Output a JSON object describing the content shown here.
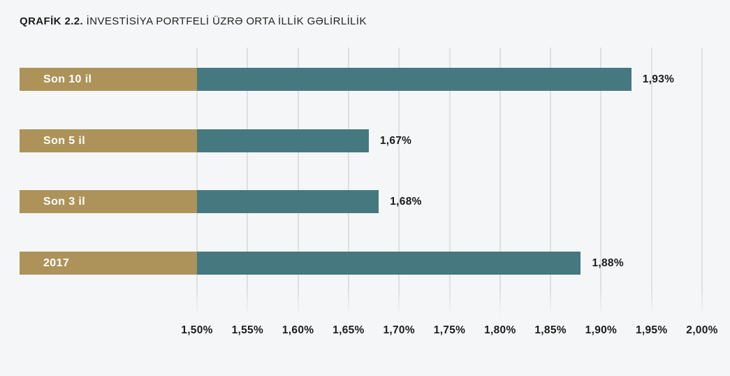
{
  "chart_data": {
    "type": "bar",
    "orientation": "horizontal",
    "title_prefix": "QRAFİK 2.2.",
    "title": "İNVESTİSİYA PORTFELİ ÜZRƏ ORTA İLLİK GƏLİRLİLİK",
    "categories": [
      "Son 10 il",
      "Son 5 il",
      "Son 3 il",
      "2017"
    ],
    "values": [
      1.93,
      1.67,
      1.68,
      1.88
    ],
    "value_labels": [
      "1,93%",
      "1,67%",
      "1,68%",
      "1,88%"
    ],
    "x_ticks": [
      "1,50%",
      "1,55%",
      "1,60%",
      "1,65%",
      "1,70%",
      "1,75%",
      "1,80%",
      "1,85%",
      "1,90%",
      "1,95%",
      "2,00%"
    ],
    "x_tick_values": [
      1.5,
      1.55,
      1.6,
      1.65,
      1.7,
      1.75,
      1.8,
      1.85,
      1.9,
      1.95,
      2.0
    ],
    "xlim": [
      1.5,
      2.0
    ],
    "grid": true,
    "legend": false,
    "xlabel": "",
    "ylabel": "",
    "colors": {
      "background": "#f5f6f7",
      "bar": "#46787f",
      "category_strip": "#ad9359",
      "gridline": "#dde0e3",
      "text": "#1c1c1c",
      "bar_label_text": "#ffffff"
    }
  }
}
